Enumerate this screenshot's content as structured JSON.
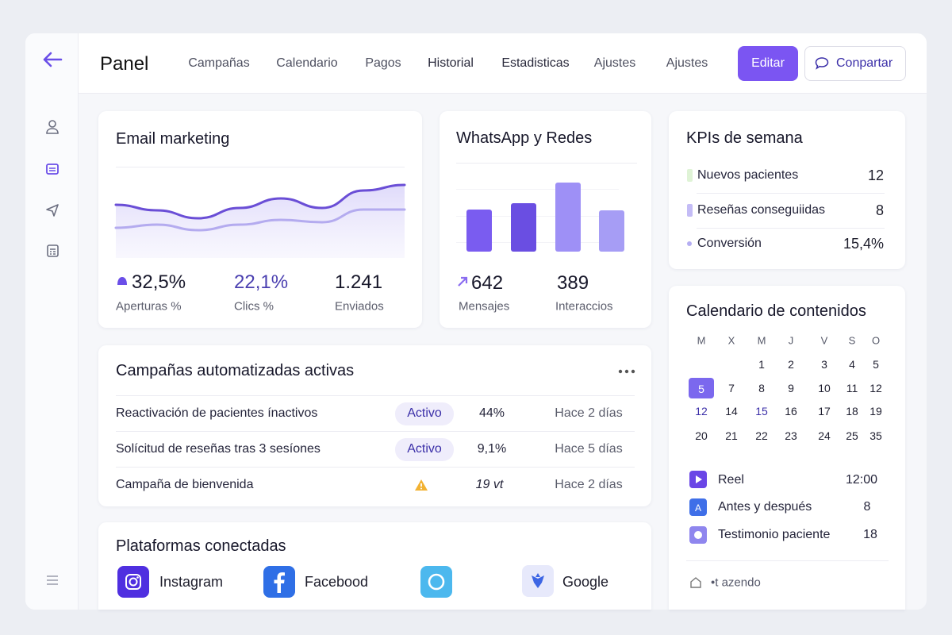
{
  "header": {
    "title": "Panel",
    "nav": [
      "Campañas",
      "Calendario",
      "Pagos",
      "Historial",
      "Estadisticas",
      "Ajustes",
      "Ajustes"
    ],
    "actions": {
      "edit": "Editar",
      "share": "Conpartar"
    }
  },
  "email_marketing": {
    "title": "Email marketing",
    "chart": {
      "series": [
        {
          "values": [
            72,
            65,
            55,
            68,
            80,
            68,
            90,
            97
          ]
        },
        {
          "values": [
            43,
            47,
            40,
            47,
            53,
            50,
            66,
            66
          ]
        }
      ]
    },
    "stats": [
      {
        "value": "32,5%",
        "label": "Aperturas %"
      },
      {
        "value": "22,1%",
        "label": "Clics %"
      },
      {
        "value": "1.241",
        "label": "Enviados"
      }
    ]
  },
  "whatsapp": {
    "title": "WhatsApp y Redes",
    "bars": [
      53,
      61,
      87,
      52
    ],
    "stats": [
      {
        "value": "642",
        "label": "Mensajes"
      },
      {
        "value": "389",
        "label": "Interaccios"
      }
    ]
  },
  "kpis": {
    "title": "KPIs de semana",
    "rows": [
      {
        "label": "Nuevos  pacientes",
        "value": "12"
      },
      {
        "label": "Reseñas conseguiidas",
        "value": "8"
      },
      {
        "label": "Conversión",
        "value": "15,4%"
      }
    ]
  },
  "calendar": {
    "title": "Calendario de contenidos",
    "weekdays": [
      "M",
      "X",
      "M",
      "J",
      "V",
      "S",
      "O"
    ],
    "weeks": [
      [
        null,
        null,
        1,
        2,
        3,
        4,
        5
      ],
      [
        5,
        7,
        8,
        9,
        10,
        11,
        12
      ],
      [
        12,
        14,
        15,
        16,
        17,
        18,
        19
      ],
      [
        20,
        21,
        22,
        23,
        24,
        25,
        35
      ]
    ],
    "events": [
      {
        "label": "Reel",
        "value": "12:00"
      },
      {
        "label": "Antes y después",
        "value": "8"
      },
      {
        "label": "Testimonio paciente",
        "value": "18"
      }
    ],
    "footer": "•t azendo"
  },
  "campaigns": {
    "title": "Campañas automatizadas activas",
    "rows": [
      {
        "name": "Reactivación de pacientes ínactivos",
        "status": "Activo",
        "rate": "44%",
        "time": "Hace 2 días"
      },
      {
        "name": "Solícitud de reseñas tras 3 sesíones",
        "status": "Activo",
        "rate": "9,1%",
        "time": "Hace 5 días"
      },
      {
        "name": "Campaña de bienvenida",
        "rate": "19 vt",
        "time": "Hace 2 días"
      }
    ]
  },
  "platforms": {
    "title": "Plataformas conectadas",
    "items": [
      "Instagram",
      "Facebood",
      "Google"
    ]
  }
}
